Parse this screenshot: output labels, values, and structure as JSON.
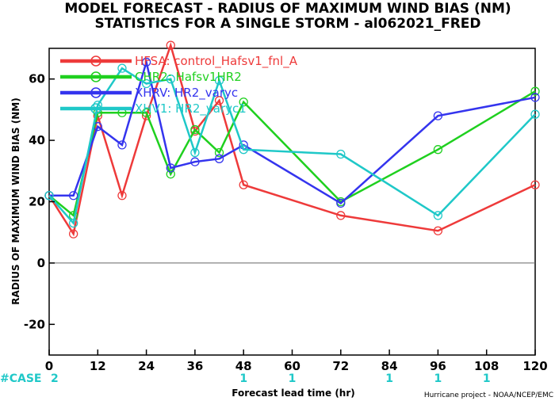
{
  "chart_data": {
    "type": "line",
    "title": "MODEL FORECAST - RADIUS OF MAXIMUM WIND BIAS (NM)",
    "subtitle": "STATISTICS FOR A SINGLE STORM - al062021_FRED",
    "xlabel": "Forecast lead time (hr)",
    "ylabel": "RADIUS OF MAXIMUM WIND BIAS (NM)",
    "xlim": [
      0,
      120
    ],
    "ylim": [
      -30,
      70
    ],
    "xticks": [
      0,
      12,
      24,
      36,
      48,
      60,
      72,
      84,
      96,
      108,
      120
    ],
    "yticks": [
      -20,
      0,
      20,
      40,
      60
    ],
    "zero_line": true,
    "legend_position": "top-left",
    "series": [
      {
        "name": "HFSA: control_Hafsv1_fnl_A",
        "color": "#ee3a3a",
        "x": [
          0,
          6,
          12,
          18,
          24,
          30,
          36,
          42,
          48,
          72,
          96,
          120
        ],
        "y": [
          22,
          9.5,
          48,
          22,
          48,
          71,
          43,
          53,
          25.5,
          15.5,
          10.5,
          25.5
        ]
      },
      {
        "name": "CHR2: Hafsv1HR2",
        "color": "#1fd01f",
        "x": [
          0,
          6,
          12,
          18,
          24,
          30,
          36,
          42,
          48,
          72,
          96,
          120
        ],
        "y": [
          22,
          15.5,
          49,
          49,
          49,
          29,
          43.5,
          36,
          52.5,
          20,
          37,
          56
        ]
      },
      {
        "name": "XHRV: HR2_varyc",
        "color": "#3434ee",
        "x": [
          0,
          6,
          12,
          18,
          24,
          30,
          36,
          42,
          48,
          72,
          96,
          120
        ],
        "y": [
          22,
          22,
          44.5,
          38.5,
          65.5,
          31,
          33,
          34,
          38.5,
          19.5,
          48,
          54
        ]
      },
      {
        "name": "XHV1: HR2_varyc1",
        "color": "#1fc8c8",
        "x": [
          0,
          6,
          12,
          18,
          24,
          30,
          36,
          42,
          48,
          72,
          96,
          120
        ],
        "y": [
          22,
          13,
          51.5,
          63.5,
          58.5,
          60,
          36,
          59.5,
          37,
          35.5,
          15.5,
          48.5
        ]
      }
    ],
    "case_counts": {
      "label": "#CASE",
      "x": [
        0,
        48,
        60,
        84,
        96,
        108
      ],
      "values": [
        "2",
        "1",
        "1",
        "1",
        "1",
        "1"
      ]
    },
    "credit": "Hurricane project - NOAA/NCEP/EMC"
  },
  "colors": {
    "plot_background": "#ffffff",
    "axis": "#000000",
    "case_label": "#1fc8c8"
  }
}
